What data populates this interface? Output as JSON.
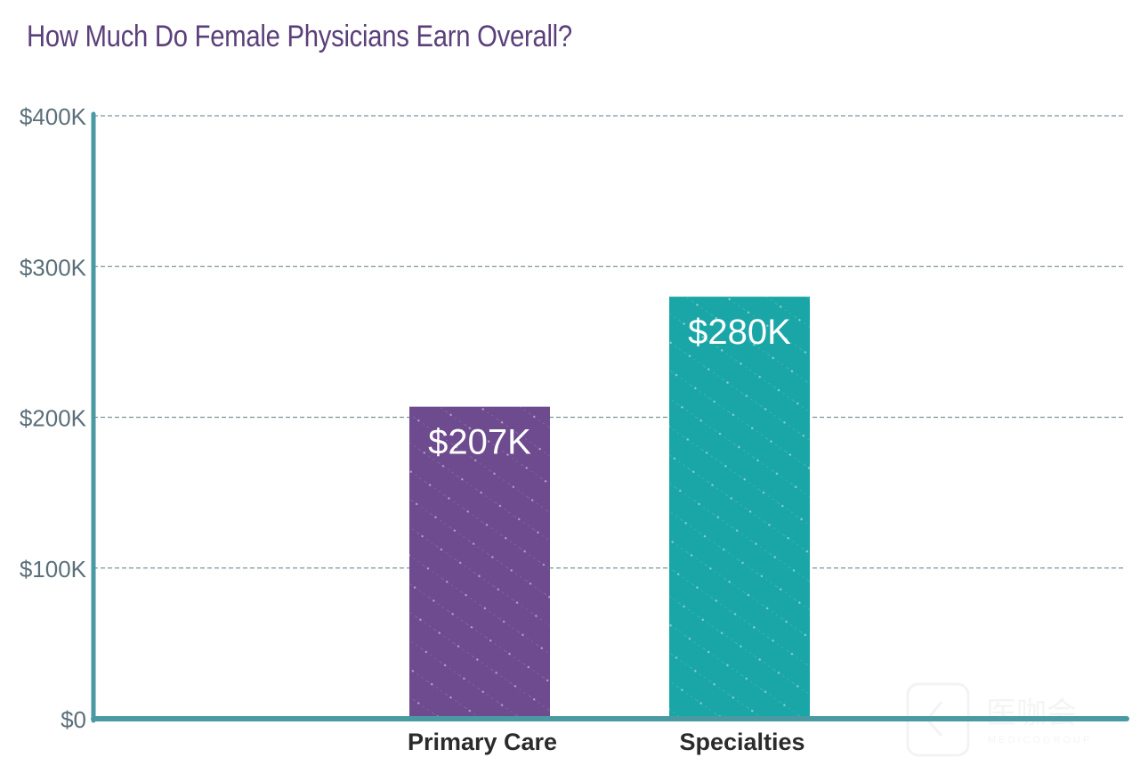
{
  "chart_data": {
    "type": "bar",
    "title": "How Much Do Female Physicians Earn Overall?",
    "xlabel": "",
    "ylabel": "",
    "categories": [
      "Primary Care",
      "Specialties"
    ],
    "values": [
      207,
      280
    ],
    "value_unit": "thousand USD",
    "data_labels": [
      "$207K",
      "$280K"
    ],
    "bar_colors": [
      "#6e4a8e",
      "#1aa6a6"
    ],
    "ylim": [
      0,
      400
    ],
    "yticks": [
      0,
      100,
      200,
      300,
      400
    ],
    "ytick_labels": [
      "$0",
      "$100K",
      "$200K",
      "$300K",
      "$400K"
    ],
    "grid": true,
    "grid_style": "dashed",
    "legend": "none",
    "axis_color": "#4a9aa3"
  },
  "watermark": {
    "text": "医咖会",
    "subtext": "MEDICOGROUP"
  }
}
